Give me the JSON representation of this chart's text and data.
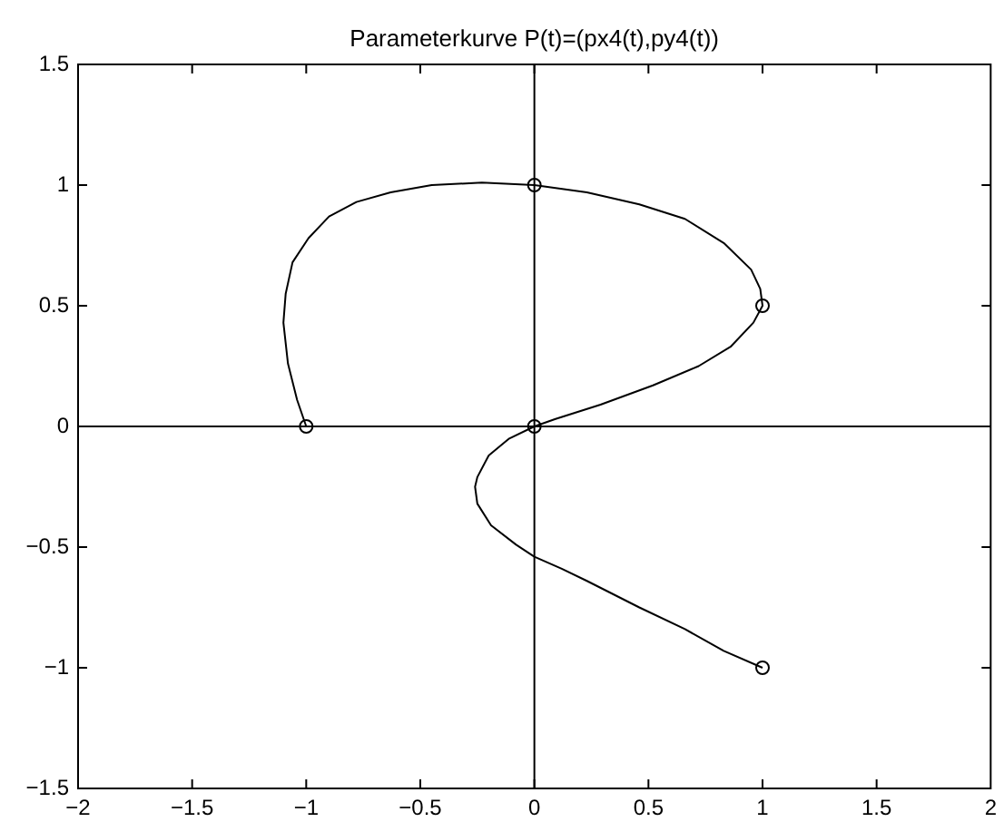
{
  "chart_data": {
    "type": "line",
    "title": "Parameterkurve P(t)=(px4(t),py4(t))",
    "xlim": [
      -2,
      2
    ],
    "xticks": [
      {
        "value": -2,
        "label": "−2"
      },
      {
        "value": -1.5,
        "label": "−1.5"
      },
      {
        "value": -1,
        "label": "−1"
      },
      {
        "value": -0.5,
        "label": "−0.5"
      },
      0,
      0.5,
      1,
      1.5,
      2
    ],
    "ylim": [
      -1.5,
      1.5
    ],
    "yticks": [
      {
        "value": -1.5,
        "label": "−1.5"
      },
      {
        "value": -1,
        "label": "−1"
      },
      {
        "value": -0.5,
        "label": "−0.5"
      },
      0,
      0.5,
      1,
      1.5
    ],
    "grid": false,
    "legend": false,
    "line_style": "solid",
    "series": [
      {
        "color": "#000000",
        "x": [
          -2,
          2
        ],
        "values": [
          0,
          0
        ]
      },
      {
        "color": "#000000",
        "x": [
          0,
          0
        ],
        "values": [
          -1.5,
          1.5
        ]
      },
      {
        "color": "#000000",
        "x": [
          -1,
          -1.04,
          -1.08,
          -1.1,
          -1.09,
          -1.06,
          -0.99,
          -0.9,
          -0.78,
          -0.63,
          -0.45,
          -0.23,
          0,
          0.23,
          0.46,
          0.66,
          0.83,
          0.95,
          0.99,
          1,
          0.96,
          0.86,
          0.72,
          0.52,
          0.29,
          0.09,
          0,
          -0.11,
          -0.2,
          -0.25,
          -0.26,
          -0.25,
          -0.19,
          -0.08,
          0,
          0.12,
          0.23,
          0.46,
          0.66,
          0.83,
          1
        ],
        "values": [
          0,
          0.11,
          0.26,
          0.43,
          0.55,
          0.68,
          0.78,
          0.87,
          0.93,
          0.97,
          1,
          1.01,
          1,
          0.97,
          0.92,
          0.86,
          0.76,
          0.65,
          0.57,
          0.5,
          0.43,
          0.33,
          0.25,
          0.17,
          0.09,
          0.03,
          0,
          -0.05,
          -0.12,
          -0.21,
          -0.25,
          -0.32,
          -0.41,
          -0.49,
          -0.54,
          -0.59,
          -0.64,
          -0.75,
          -0.84,
          -0.93,
          -1
        ]
      },
      {
        "type": "scatter",
        "color": "#000000",
        "marker": "circle",
        "x": [
          -1,
          0,
          1,
          0,
          1
        ],
        "values": [
          0,
          1,
          0.5,
          0,
          -1
        ]
      }
    ]
  }
}
